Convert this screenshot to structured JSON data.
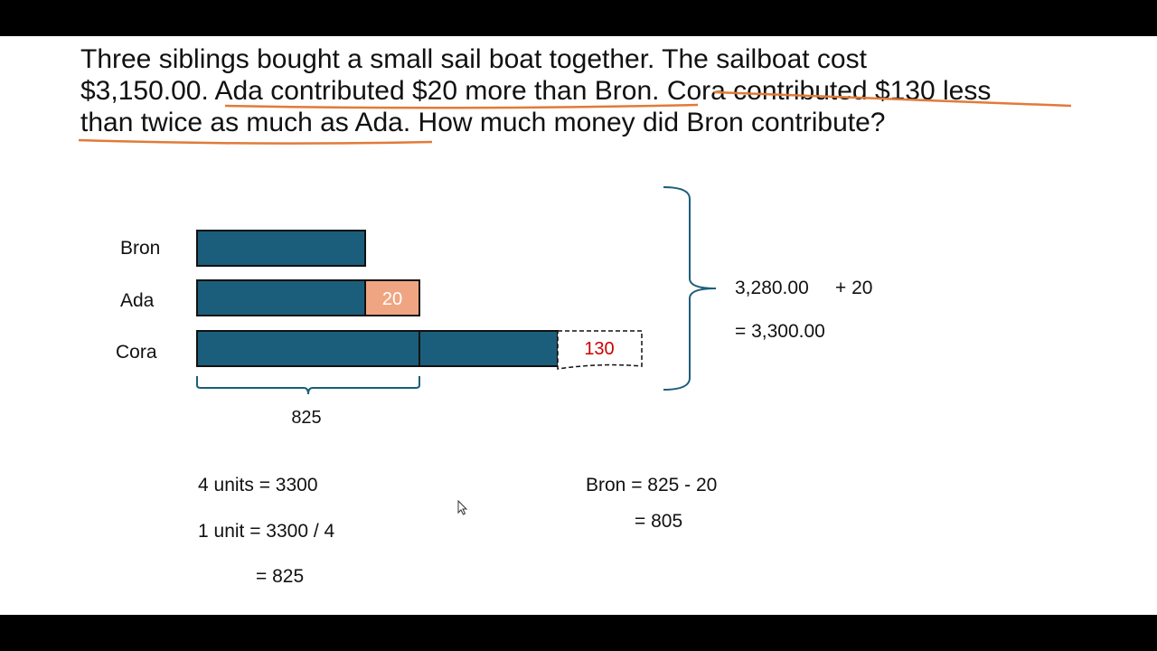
{
  "problem": {
    "line1": "Three siblings bought a small sail boat together. The sailboat cost",
    "line2_a": "$3,150.00. ",
    "line2_b": "Ada contributed $20 more than Bron",
    "line2_c": ". ",
    "line2_d": "Cora contributed $130 less",
    "line3_a": "than twice as much as Ada",
    "line3_b": ". How much money did Bron contribute?"
  },
  "model": {
    "bron_label": "Bron",
    "ada_label": "Ada",
    "cora_label": "Cora",
    "ada_extra": "20",
    "cora_less": "130",
    "unit_value": "825"
  },
  "bracket_math": {
    "line1_a": "3,280.00",
    "line1_b": "+ 20",
    "line2": "= 3,300.00"
  },
  "work_left": {
    "line1": "4 units = 3300",
    "line2": "1 unit = 3300 / 4",
    "line3": "= 825"
  },
  "work_right": {
    "line1": "Bron = 825 - 20",
    "line2": "= 805"
  },
  "colors": {
    "bar": "#1b5e7c",
    "ada_extra_fill": "#f0a582",
    "cora_text": "#cc0000",
    "underline": "#e07b39",
    "brace": "#1b5e7c"
  }
}
